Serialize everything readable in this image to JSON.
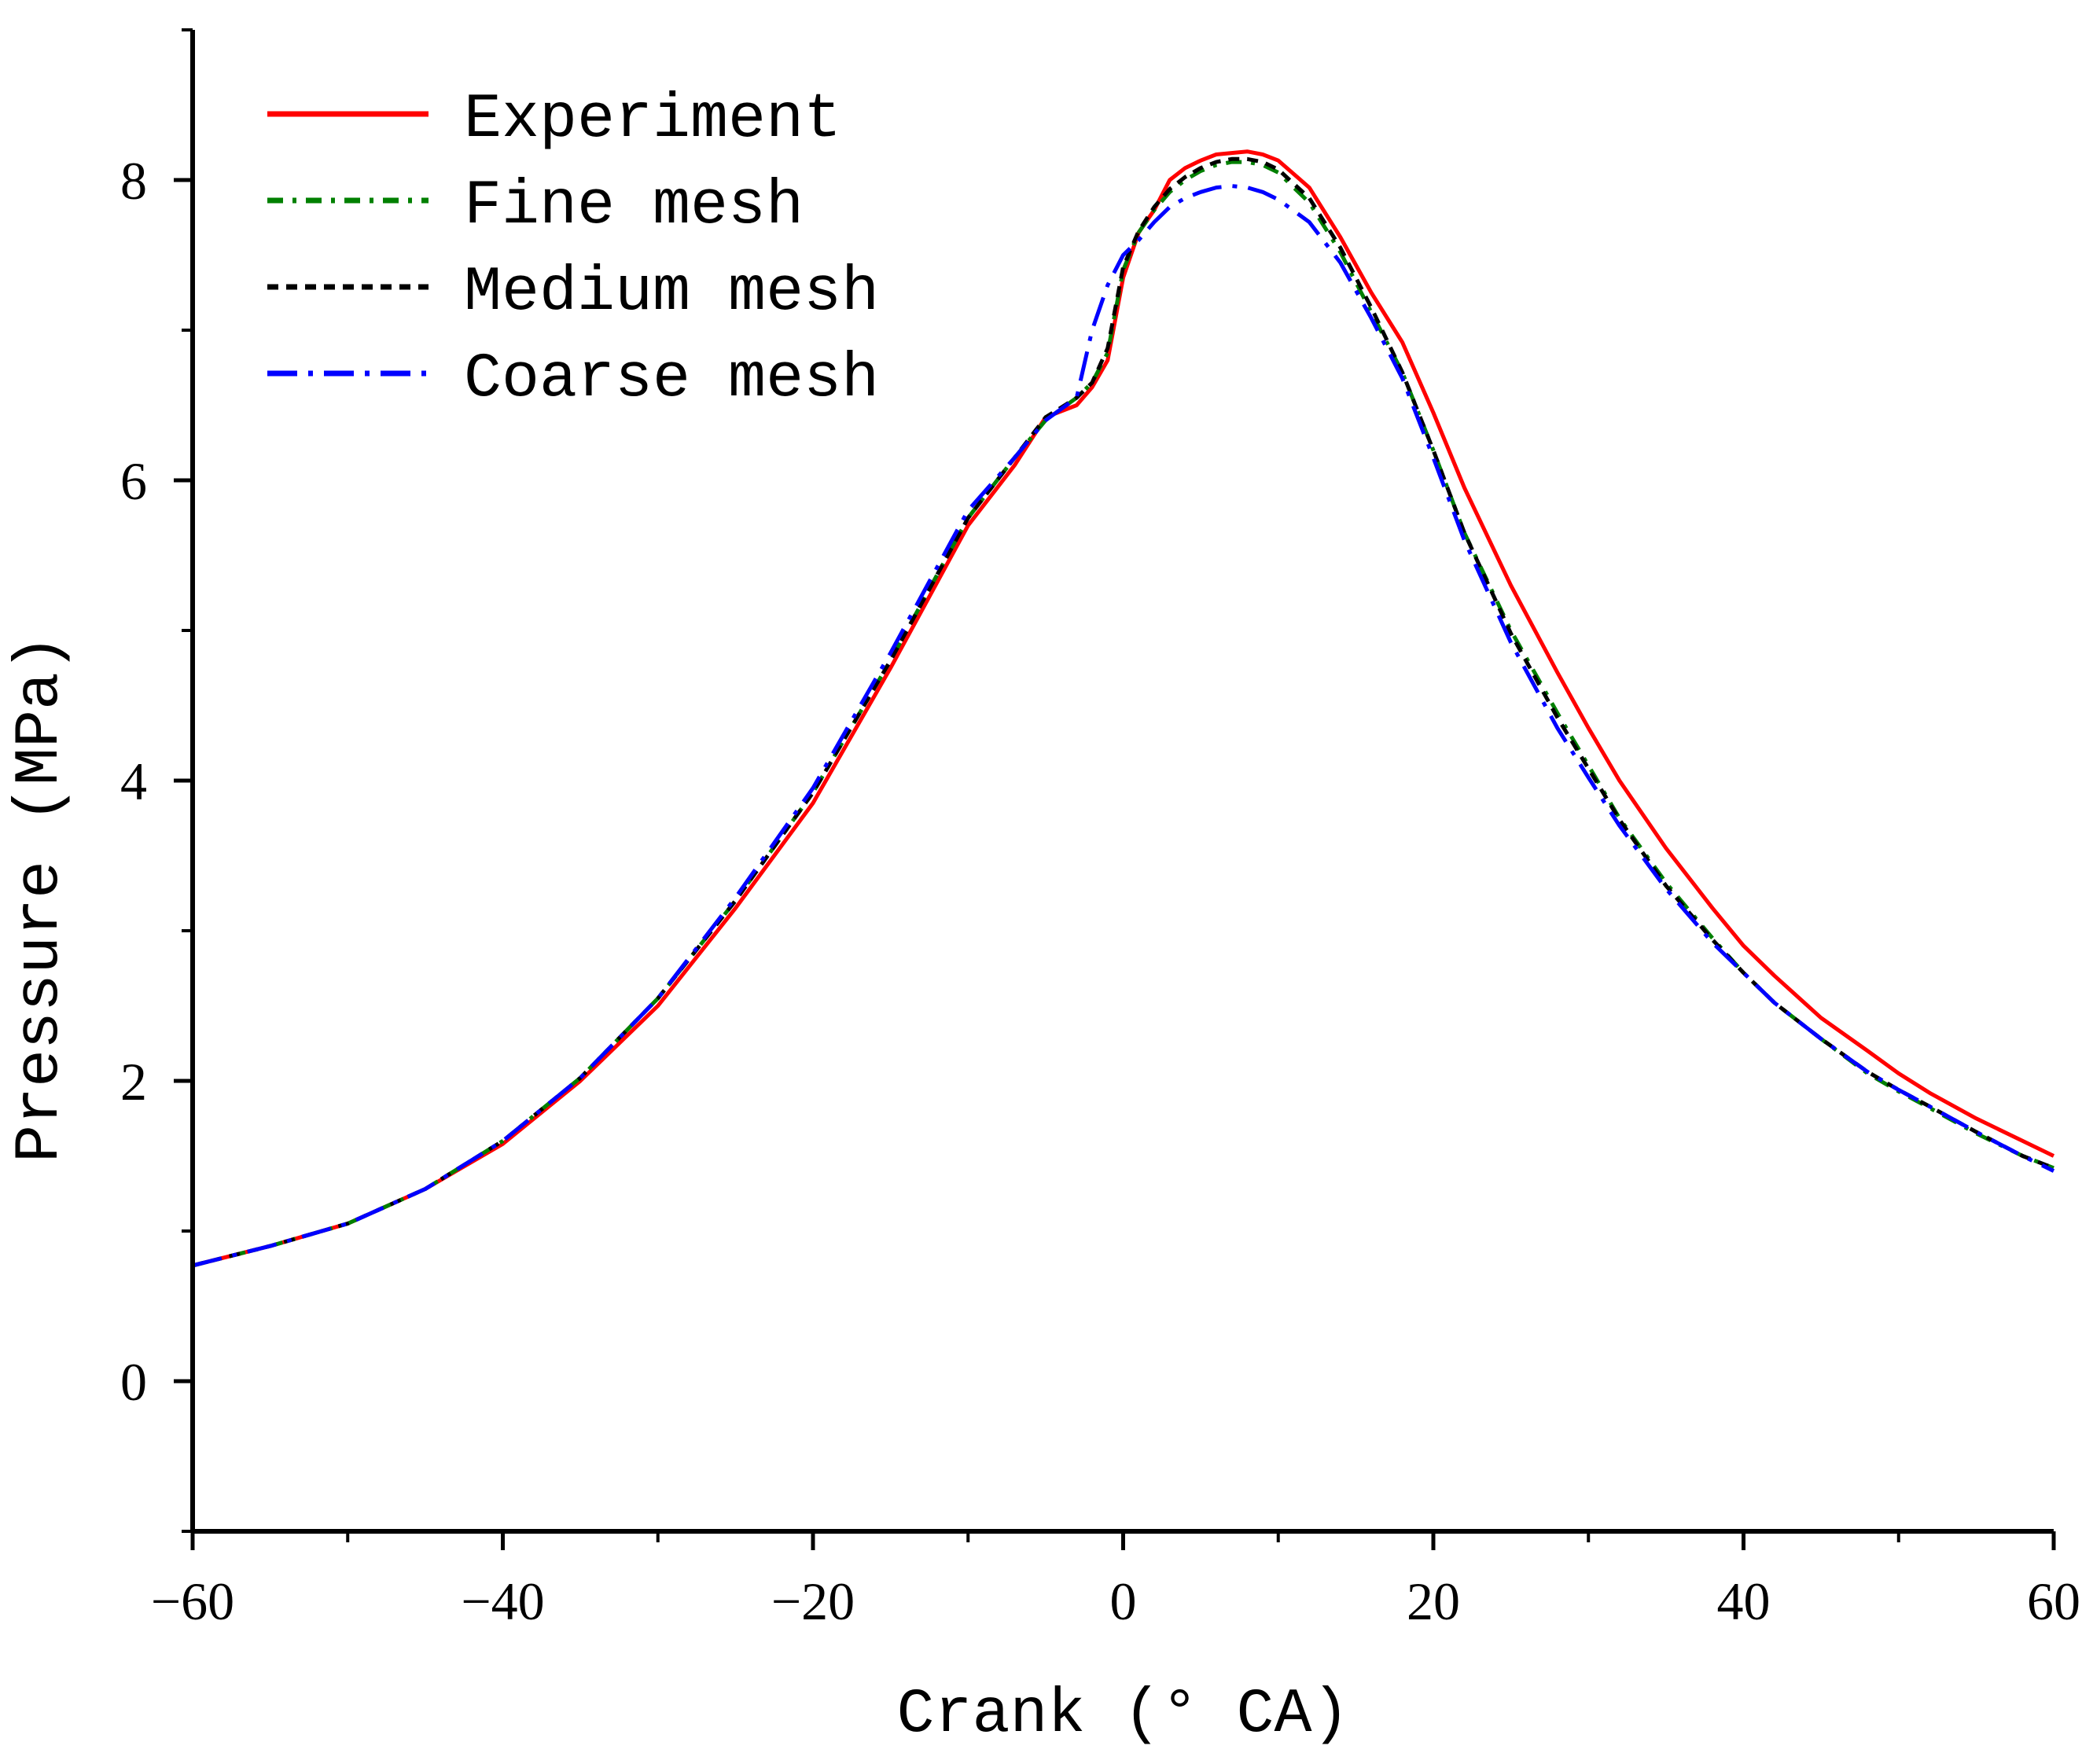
{
  "chart_data": {
    "type": "line",
    "title": "",
    "xlabel": "Crank (° CA)",
    "ylabel": "Pressure (MPa)",
    "xlim": [
      -60,
      60
    ],
    "ylim": [
      -1,
      9
    ],
    "xticks": [
      -60,
      -40,
      -20,
      0,
      20,
      40,
      60
    ],
    "xtick_labels": [
      "−60",
      "−40",
      "−20",
      "0",
      "20",
      "40",
      "60"
    ],
    "yticks": [
      0,
      2,
      4,
      6,
      8
    ],
    "ytick_labels": [
      "0",
      "2",
      "4",
      "6",
      "8"
    ],
    "legend_position": "top-left",
    "series": [
      {
        "name": "Experiment",
        "color": "#ff0000",
        "style": "solid",
        "x": [
          -60,
          -55,
          -50,
          -45,
          -40,
          -35,
          -30,
          -25,
          -20,
          -15,
          -10,
          -7,
          -5,
          -3,
          -2,
          -1,
          0,
          1,
          2,
          3,
          4,
          5,
          6,
          7,
          8,
          9,
          10,
          12,
          14,
          16,
          18,
          20,
          22,
          25,
          28,
          30,
          32,
          35,
          38,
          40,
          42,
          45,
          48,
          50,
          52,
          55,
          58,
          60
        ],
        "y": [
          0.77,
          0.9,
          1.05,
          1.28,
          1.58,
          2.0,
          2.5,
          3.15,
          3.85,
          4.75,
          5.7,
          6.1,
          6.42,
          6.5,
          6.62,
          6.8,
          7.35,
          7.65,
          7.8,
          8.0,
          8.08,
          8.13,
          8.17,
          8.18,
          8.19,
          8.17,
          8.13,
          7.95,
          7.62,
          7.25,
          6.92,
          6.45,
          5.95,
          5.3,
          4.72,
          4.35,
          4.0,
          3.55,
          3.15,
          2.9,
          2.7,
          2.42,
          2.2,
          2.05,
          1.92,
          1.75,
          1.6,
          1.5
        ]
      },
      {
        "name": "Fine mesh",
        "color": "#008000",
        "style": "dash-dot",
        "x": [
          -60,
          -55,
          -50,
          -45,
          -40,
          -35,
          -30,
          -25,
          -20,
          -15,
          -10,
          -7,
          -5,
          -3,
          -2,
          -1,
          0,
          1,
          2,
          3,
          4,
          5,
          6,
          7,
          8,
          9,
          10,
          12,
          14,
          16,
          18,
          20,
          22,
          25,
          28,
          30,
          32,
          35,
          38,
          40,
          42,
          45,
          48,
          50,
          52,
          55,
          58,
          60
        ],
        "y": [
          0.77,
          0.9,
          1.05,
          1.28,
          1.6,
          2.02,
          2.55,
          3.2,
          3.92,
          4.8,
          5.75,
          6.15,
          6.4,
          6.55,
          6.65,
          6.85,
          7.4,
          7.65,
          7.8,
          7.92,
          8.0,
          8.06,
          8.1,
          8.12,
          8.12,
          8.1,
          8.05,
          7.85,
          7.52,
          7.12,
          6.72,
          6.2,
          5.65,
          5.0,
          4.45,
          4.1,
          3.75,
          3.32,
          2.95,
          2.72,
          2.52,
          2.28,
          2.05,
          1.93,
          1.82,
          1.65,
          1.5,
          1.42
        ]
      },
      {
        "name": "Medium mesh",
        "color": "#000000",
        "style": "dashed",
        "x": [
          -60,
          -55,
          -50,
          -45,
          -40,
          -35,
          -30,
          -25,
          -20,
          -15,
          -10,
          -7,
          -5,
          -3,
          -2,
          -1,
          0,
          1,
          2,
          3,
          4,
          5,
          6,
          7,
          8,
          9,
          10,
          12,
          14,
          16,
          18,
          20,
          22,
          25,
          28,
          30,
          32,
          35,
          38,
          40,
          42,
          45,
          48,
          50,
          52,
          55,
          58,
          60
        ],
        "y": [
          0.77,
          0.9,
          1.05,
          1.28,
          1.6,
          2.02,
          2.55,
          3.2,
          3.92,
          4.8,
          5.75,
          6.15,
          6.42,
          6.55,
          6.65,
          6.88,
          7.42,
          7.66,
          7.82,
          7.94,
          8.02,
          8.08,
          8.12,
          8.14,
          8.14,
          8.12,
          8.07,
          7.88,
          7.55,
          7.15,
          6.72,
          6.2,
          5.65,
          4.98,
          4.42,
          4.08,
          3.74,
          3.3,
          2.94,
          2.72,
          2.52,
          2.28,
          2.06,
          1.94,
          1.83,
          1.66,
          1.5,
          1.42
        ]
      },
      {
        "name": "Coarse mesh",
        "color": "#0000ff",
        "style": "long-dash-dot",
        "x": [
          -60,
          -55,
          -50,
          -45,
          -40,
          -35,
          -30,
          -25,
          -20,
          -15,
          -10,
          -7,
          -5,
          -3,
          -2,
          -1,
          0,
          1,
          2,
          3,
          4,
          5,
          6,
          7,
          8,
          9,
          10,
          12,
          14,
          16,
          18,
          20,
          22,
          25,
          28,
          30,
          32,
          35,
          38,
          40,
          42,
          45,
          48,
          50,
          52,
          55,
          58,
          60
        ],
        "y": [
          0.77,
          0.9,
          1.05,
          1.28,
          1.6,
          2.02,
          2.55,
          3.22,
          3.95,
          4.85,
          5.8,
          6.15,
          6.4,
          6.55,
          7.0,
          7.3,
          7.5,
          7.6,
          7.72,
          7.82,
          7.88,
          7.92,
          7.95,
          7.96,
          7.95,
          7.92,
          7.87,
          7.72,
          7.45,
          7.08,
          6.68,
          6.15,
          5.6,
          4.92,
          4.35,
          4.02,
          3.7,
          3.28,
          2.92,
          2.72,
          2.52,
          2.28,
          2.06,
          1.94,
          1.83,
          1.66,
          1.5,
          1.4
        ]
      }
    ]
  }
}
